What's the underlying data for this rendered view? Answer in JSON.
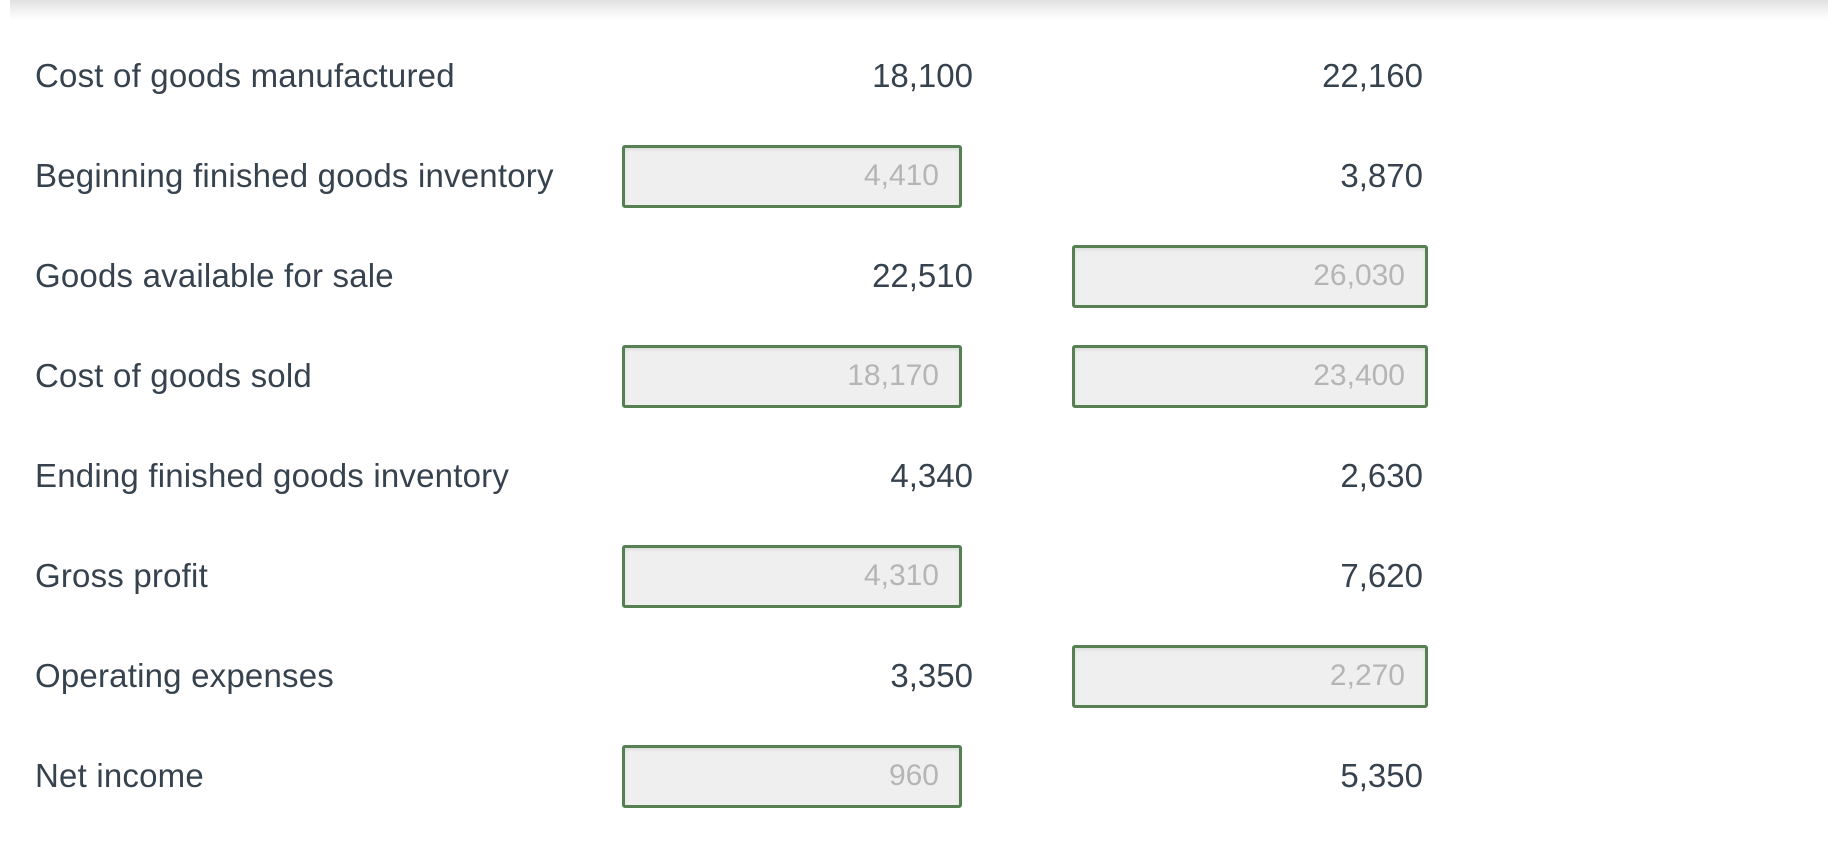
{
  "colors": {
    "text": "#36424e",
    "input_border": "#567f52",
    "input_bg": "#efefef",
    "input_text": "#b5b5b5",
    "top_shadow": "#e0e0e0"
  },
  "table": {
    "rows": [
      {
        "label": "Cost of goods manufactured",
        "col1": {
          "kind": "text",
          "value": "18,100"
        },
        "col2": {
          "kind": "text",
          "value": "22,160"
        }
      },
      {
        "label": "Beginning finished goods inventory",
        "col1": {
          "kind": "input",
          "value": "4,410"
        },
        "col2": {
          "kind": "text",
          "value": "3,870"
        }
      },
      {
        "label": "Goods available for sale",
        "col1": {
          "kind": "text",
          "value": "22,510"
        },
        "col2": {
          "kind": "input",
          "value": "26,030"
        }
      },
      {
        "label": "Cost of goods sold",
        "col1": {
          "kind": "input",
          "value": "18,170"
        },
        "col2": {
          "kind": "input",
          "value": "23,400"
        }
      },
      {
        "label": "Ending finished goods inventory",
        "col1": {
          "kind": "text",
          "value": "4,340"
        },
        "col2": {
          "kind": "text",
          "value": "2,630"
        }
      },
      {
        "label": "Gross profit",
        "col1": {
          "kind": "input",
          "value": "4,310"
        },
        "col2": {
          "kind": "text",
          "value": "7,620"
        }
      },
      {
        "label": "Operating expenses",
        "col1": {
          "kind": "text",
          "value": "3,350"
        },
        "col2": {
          "kind": "input",
          "value": "2,270"
        }
      },
      {
        "label": "Net income",
        "col1": {
          "kind": "input",
          "value": "960"
        },
        "col2": {
          "kind": "text",
          "value": "5,350"
        }
      }
    ]
  }
}
